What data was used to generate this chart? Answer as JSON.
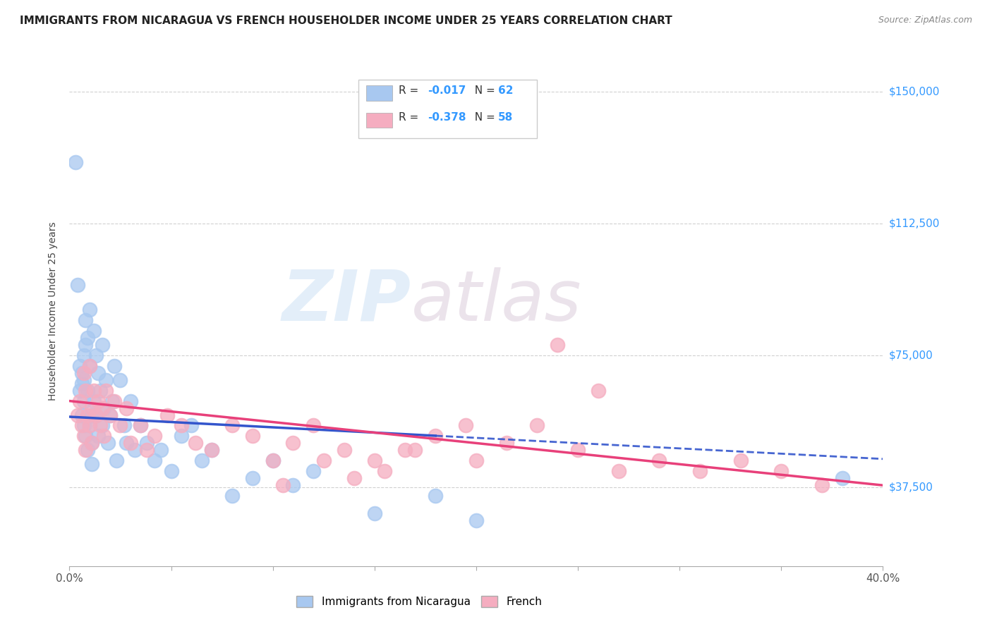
{
  "title": "IMMIGRANTS FROM NICARAGUA VS FRENCH HOUSEHOLDER INCOME UNDER 25 YEARS CORRELATION CHART",
  "source": "Source: ZipAtlas.com",
  "ylabel": "Householder Income Under 25 years",
  "xlim": [
    0.0,
    0.4
  ],
  "ylim": [
    15000,
    160000
  ],
  "ytick_positions": [
    37500,
    75000,
    112500,
    150000
  ],
  "ytick_labels": [
    "$37,500",
    "$75,000",
    "$112,500",
    "$150,000"
  ],
  "color_nicaragua": "#a8c8f0",
  "color_french": "#f5adc0",
  "line_color_nicaragua": "#3355cc",
  "line_color_french": "#e8407a",
  "background_color": "#ffffff",
  "grid_color": "#cccccc",
  "yaxis_label_color": "#3399ff",
  "watermark_color": "#c8dff5",
  "watermark_color2": "#d8c8d8",
  "nicaragua_x": [
    0.003,
    0.004,
    0.005,
    0.005,
    0.006,
    0.006,
    0.006,
    0.007,
    0.007,
    0.007,
    0.007,
    0.008,
    0.008,
    0.008,
    0.009,
    0.009,
    0.009,
    0.01,
    0.01,
    0.01,
    0.011,
    0.011,
    0.011,
    0.012,
    0.012,
    0.013,
    0.013,
    0.014,
    0.014,
    0.015,
    0.016,
    0.016,
    0.017,
    0.018,
    0.019,
    0.02,
    0.021,
    0.022,
    0.023,
    0.025,
    0.027,
    0.028,
    0.03,
    0.032,
    0.035,
    0.038,
    0.042,
    0.045,
    0.05,
    0.055,
    0.06,
    0.065,
    0.07,
    0.08,
    0.09,
    0.1,
    0.11,
    0.12,
    0.15,
    0.18,
    0.2,
    0.38
  ],
  "nicaragua_y": [
    130000,
    95000,
    65000,
    72000,
    70000,
    67000,
    58000,
    75000,
    68000,
    62000,
    55000,
    85000,
    78000,
    52000,
    80000,
    65000,
    48000,
    88000,
    72000,
    55000,
    58000,
    50000,
    44000,
    82000,
    62000,
    75000,
    58000,
    70000,
    52000,
    65000,
    78000,
    55000,
    60000,
    68000,
    50000,
    58000,
    62000,
    72000,
    45000,
    68000,
    55000,
    50000,
    62000,
    48000,
    55000,
    50000,
    45000,
    48000,
    42000,
    52000,
    55000,
    45000,
    48000,
    35000,
    40000,
    45000,
    38000,
    42000,
    30000,
    35000,
    28000,
    40000
  ],
  "french_x": [
    0.004,
    0.005,
    0.006,
    0.007,
    0.007,
    0.008,
    0.008,
    0.009,
    0.01,
    0.01,
    0.011,
    0.011,
    0.012,
    0.013,
    0.014,
    0.015,
    0.016,
    0.017,
    0.018,
    0.02,
    0.022,
    0.025,
    0.028,
    0.03,
    0.035,
    0.038,
    0.042,
    0.048,
    0.055,
    0.062,
    0.07,
    0.08,
    0.09,
    0.1,
    0.11,
    0.12,
    0.135,
    0.15,
    0.165,
    0.18,
    0.2,
    0.215,
    0.23,
    0.25,
    0.27,
    0.29,
    0.31,
    0.33,
    0.35,
    0.37,
    0.24,
    0.26,
    0.195,
    0.17,
    0.14,
    0.155,
    0.125,
    0.105
  ],
  "french_y": [
    58000,
    62000,
    55000,
    70000,
    52000,
    65000,
    48000,
    58000,
    72000,
    55000,
    60000,
    50000,
    65000,
    58000,
    62000,
    55000,
    60000,
    52000,
    65000,
    58000,
    62000,
    55000,
    60000,
    50000,
    55000,
    48000,
    52000,
    58000,
    55000,
    50000,
    48000,
    55000,
    52000,
    45000,
    50000,
    55000,
    48000,
    45000,
    48000,
    52000,
    45000,
    50000,
    55000,
    48000,
    42000,
    45000,
    42000,
    45000,
    42000,
    38000,
    78000,
    65000,
    55000,
    48000,
    40000,
    42000,
    45000,
    38000
  ]
}
